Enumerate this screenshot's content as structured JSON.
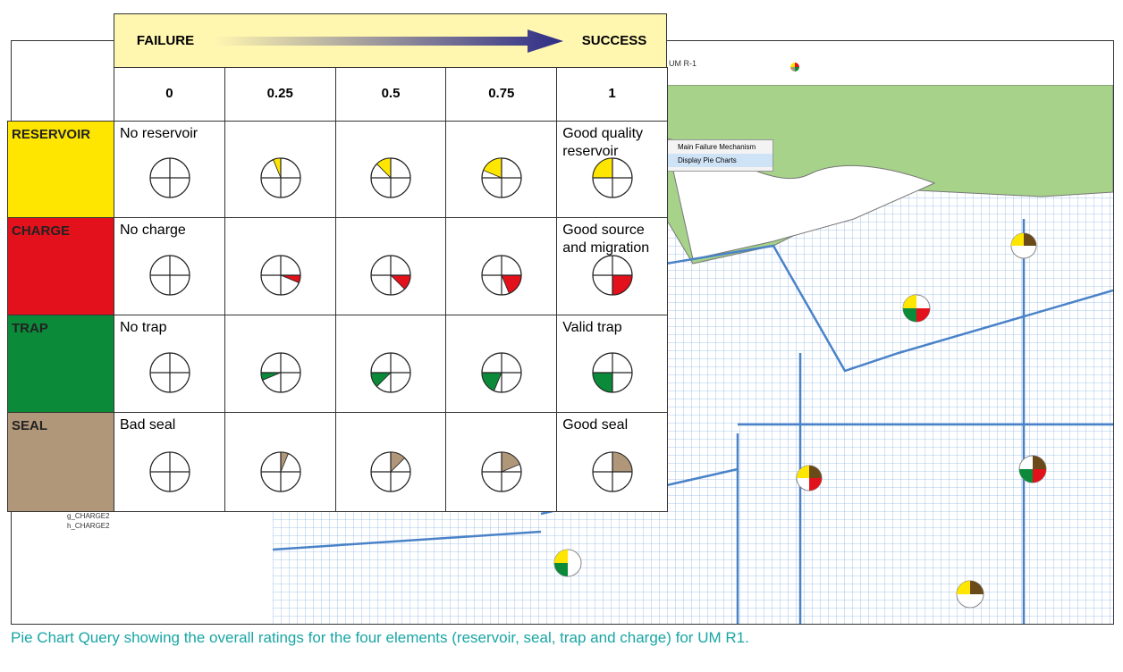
{
  "header": {
    "left": "FAILURE",
    "right": "SUCCESS"
  },
  "table": {
    "columns": [
      0,
      0.25,
      0.5,
      0.75,
      1
    ],
    "rows": [
      {
        "name": "RESERVOIR",
        "color": "#ffe600",
        "low": "No reservoir",
        "high": "Good quality reservoir"
      },
      {
        "name": "CHARGE",
        "color": "#e3111b",
        "low": "No charge",
        "high": "Good source and migration"
      },
      {
        "name": "TRAP",
        "color": "#0b8a3a",
        "low": "No trap",
        "high": "Valid trap"
      },
      {
        "name": "SEAL",
        "color": "#b0977a",
        "low": "Bad seal",
        "high": "Good seal"
      }
    ]
  },
  "map": {
    "layer": "UM R-1",
    "menu": [
      "Main Failure Mechanism",
      "Display Pie Charts"
    ],
    "toc": [
      "g_CHARGE2",
      "h_CHARGE2"
    ]
  },
  "caption": "Pie Chart Query showing the overall ratings for the four elements (reservoir, seal, trap and charge) for UM R1."
}
